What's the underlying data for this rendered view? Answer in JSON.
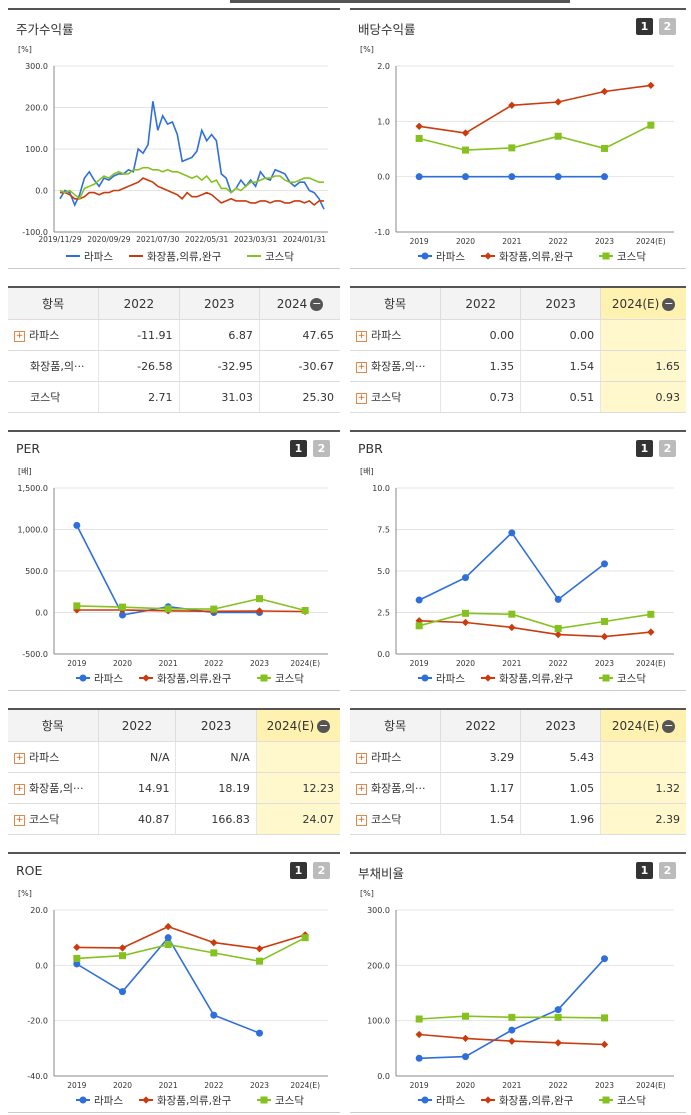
{
  "series_names": [
    "라파스",
    "화장품,의류,완구",
    "코스닥"
  ],
  "series_colors": [
    "#2e6fdc",
    "#cc3b0e",
    "#86c21f"
  ],
  "panels": [
    {
      "key": "stock",
      "title": "주가수익률",
      "buttons": []
    },
    {
      "key": "div",
      "title": "배당수익률",
      "buttons": [
        "1",
        "2"
      ]
    },
    {
      "key": "per",
      "title": "PER",
      "buttons": [
        "1",
        "2"
      ]
    },
    {
      "key": "pbr",
      "title": "PBR",
      "buttons": [
        "1",
        "2"
      ]
    },
    {
      "key": "roe",
      "title": "ROE",
      "buttons": [
        "1",
        "2"
      ]
    },
    {
      "key": "debt",
      "title": "부채비율",
      "buttons": [
        "1",
        "2"
      ]
    }
  ],
  "chart_data": [
    {
      "key": "stock",
      "type": "line",
      "title": "주가수익률",
      "unit": "[%]",
      "yticks": [
        "300.0",
        "200.0",
        "100.0",
        "0.0",
        "-100.0"
      ],
      "ylim": [
        -100,
        300
      ],
      "xticks": [
        "2019/11/29",
        "2020/09/29",
        "2021/07/30",
        "2022/05/31",
        "2023/03/31",
        "2024/01/31"
      ],
      "x": [
        "2019/11",
        "2019/12",
        "2020/01",
        "2020/02",
        "2020/03",
        "2020/04",
        "2020/05",
        "2020/06",
        "2020/07",
        "2020/08",
        "2020/09",
        "2020/10",
        "2020/11",
        "2020/12",
        "2021/01",
        "2021/02",
        "2021/03",
        "2021/04",
        "2021/05",
        "2021/06",
        "2021/07",
        "2021/08",
        "2021/09",
        "2021/10",
        "2021/11",
        "2021/12",
        "2022/01",
        "2022/02",
        "2022/03",
        "2022/04",
        "2022/05",
        "2022/06",
        "2022/07",
        "2022/08",
        "2022/09",
        "2022/10",
        "2022/11",
        "2022/12",
        "2023/01",
        "2023/02",
        "2023/03",
        "2023/04",
        "2023/05",
        "2023/06",
        "2023/07",
        "2023/08",
        "2023/09",
        "2023/10",
        "2023/11",
        "2023/12",
        "2024/01",
        "2024/02",
        "2024/03",
        "2024/04",
        "2024/05"
      ],
      "series": [
        {
          "name": "라파스",
          "values": [
            -20,
            0,
            -5,
            -35,
            -10,
            30,
            45,
            25,
            10,
            30,
            25,
            35,
            40,
            40,
            50,
            45,
            100,
            90,
            110,
            215,
            145,
            180,
            160,
            165,
            135,
            70,
            75,
            80,
            95,
            145,
            120,
            135,
            120,
            40,
            30,
            -5,
            5,
            25,
            10,
            25,
            10,
            45,
            30,
            25,
            50,
            45,
            40,
            20,
            10,
            20,
            20,
            0,
            -5,
            -20,
            -45
          ]
        },
        {
          "name": "화장품,의류,완구",
          "values": [
            -5,
            -5,
            -10,
            -20,
            -20,
            -15,
            -5,
            -5,
            -10,
            -5,
            -5,
            0,
            0,
            5,
            10,
            15,
            20,
            30,
            25,
            20,
            10,
            5,
            0,
            -5,
            -10,
            -20,
            -5,
            -15,
            -15,
            -10,
            -5,
            -10,
            -20,
            -30,
            -25,
            -20,
            -25,
            -25,
            -25,
            -30,
            -30,
            -25,
            -25,
            -30,
            -25,
            -25,
            -30,
            -30,
            -25,
            -25,
            -30,
            -25,
            -35,
            -25,
            -25
          ]
        },
        {
          "name": "코스닥",
          "values": [
            0,
            -5,
            0,
            -10,
            -20,
            5,
            10,
            15,
            25,
            35,
            30,
            40,
            45,
            40,
            40,
            50,
            50,
            55,
            55,
            50,
            50,
            45,
            50,
            45,
            45,
            40,
            35,
            30,
            35,
            25,
            35,
            20,
            25,
            5,
            5,
            -5,
            5,
            0,
            10,
            20,
            20,
            25,
            30,
            30,
            35,
            35,
            25,
            20,
            20,
            25,
            30,
            30,
            25,
            20,
            20
          ]
        }
      ]
    },
    {
      "key": "div",
      "type": "line",
      "title": "배당수익률",
      "unit": "[%]",
      "yticks": [
        "2.0",
        "1.0",
        "0.0",
        "-1.0"
      ],
      "ylim": [
        -1,
        2
      ],
      "x": [
        "2019",
        "2020",
        "2021",
        "2022",
        "2023",
        "2024(E)"
      ],
      "series": [
        {
          "name": "라파스",
          "values": [
            0.0,
            0.0,
            0.0,
            0.0,
            0.0,
            null
          ]
        },
        {
          "name": "화장품,의류,완구",
          "values": [
            0.91,
            0.79,
            1.29,
            1.35,
            1.54,
            1.65
          ]
        },
        {
          "name": "코스닥",
          "values": [
            0.69,
            0.48,
            0.52,
            0.73,
            0.51,
            0.93
          ]
        }
      ]
    },
    {
      "key": "per",
      "type": "line",
      "title": "PER",
      "unit": "[배]",
      "yticks": [
        "1,500.0",
        "1,000.0",
        "500.0",
        "0.0",
        "-500.0"
      ],
      "ylim": [
        -500,
        1500
      ],
      "x": [
        "2019",
        "2020",
        "2021",
        "2022",
        "2023",
        "2024(E)"
      ],
      "series": [
        {
          "name": "라파스",
          "values": [
            1050,
            -30,
            70,
            0,
            0,
            null
          ]
        },
        {
          "name": "화장품,의류,완구",
          "values": [
            30,
            30,
            20,
            14.91,
            18.19,
            12.23
          ]
        },
        {
          "name": "코스닥",
          "values": [
            80,
            65,
            45,
            40.87,
            166.83,
            24.07
          ]
        }
      ]
    },
    {
      "key": "pbr",
      "type": "line",
      "title": "PBR",
      "unit": "[배]",
      "yticks": [
        "10.0",
        "7.5",
        "5.0",
        "2.5",
        "0.0"
      ],
      "ylim": [
        0,
        10
      ],
      "x": [
        "2019",
        "2020",
        "2021",
        "2022",
        "2023",
        "2024(E)"
      ],
      "series": [
        {
          "name": "라파스",
          "values": [
            3.25,
            4.6,
            7.3,
            3.29,
            5.43,
            null
          ]
        },
        {
          "name": "화장품,의류,완구",
          "values": [
            2.0,
            1.9,
            1.6,
            1.17,
            1.05,
            1.32
          ]
        },
        {
          "name": "코스닥",
          "values": [
            1.7,
            2.45,
            2.4,
            1.54,
            1.96,
            2.39
          ]
        }
      ]
    },
    {
      "key": "roe",
      "type": "line",
      "title": "ROE",
      "unit": "[%]",
      "yticks": [
        "20.0",
        "0.0",
        "-20.0",
        "-40.0"
      ],
      "ylim": [
        -40,
        20
      ],
      "x": [
        "2019",
        "2020",
        "2021",
        "2022",
        "2023",
        "2024(E)"
      ],
      "series": [
        {
          "name": "라파스",
          "values": [
            0.5,
            -9.5,
            10.0,
            -18.0,
            -24.5,
            null
          ]
        },
        {
          "name": "화장품,의류,완구",
          "values": [
            6.5,
            6.3,
            14.0,
            8.2,
            6.0,
            11.0
          ]
        },
        {
          "name": "코스닥",
          "values": [
            2.5,
            3.5,
            7.5,
            4.5,
            1.5,
            10.0
          ]
        }
      ]
    },
    {
      "key": "debt",
      "type": "line",
      "title": "부채비율",
      "unit": "[%]",
      "yticks": [
        "300.0",
        "200.0",
        "100.0",
        "0.0"
      ],
      "ylim": [
        0,
        300
      ],
      "x": [
        "2019",
        "2020",
        "2021",
        "2022",
        "2023",
        "2024(E)"
      ],
      "series": [
        {
          "name": "라파스",
          "values": [
            32,
            35,
            83,
            120,
            212,
            null
          ]
        },
        {
          "name": "화장품,의류,완구",
          "values": [
            75,
            68,
            63,
            60,
            57,
            null
          ]
        },
        {
          "name": "코스닥",
          "values": [
            103,
            108,
            106,
            106,
            105,
            null
          ]
        }
      ]
    }
  ],
  "tables": [
    {
      "key": "t_stock",
      "header": [
        "항목",
        "2022",
        "2023",
        "2024"
      ],
      "estimate": false,
      "rows": [
        {
          "name": "라파스",
          "plus": true,
          "values": [
            "-11.91",
            "6.87",
            "47.65"
          ]
        },
        {
          "name": "화장품,의···",
          "plus": false,
          "values": [
            "-26.58",
            "-32.95",
            "-30.67"
          ]
        },
        {
          "name": "코스닥",
          "plus": false,
          "values": [
            "2.71",
            "31.03",
            "25.30"
          ]
        }
      ]
    },
    {
      "key": "t_div",
      "header": [
        "항목",
        "2022",
        "2023",
        "2024(E)"
      ],
      "estimate": true,
      "rows": [
        {
          "name": "라파스",
          "plus": true,
          "values": [
            "0.00",
            "0.00",
            ""
          ]
        },
        {
          "name": "화장품,의···",
          "plus": true,
          "values": [
            "1.35",
            "1.54",
            "1.65"
          ]
        },
        {
          "name": "코스닥",
          "plus": true,
          "values": [
            "0.73",
            "0.51",
            "0.93"
          ]
        }
      ]
    },
    {
      "key": "t_per",
      "header": [
        "항목",
        "2022",
        "2023",
        "2024(E)"
      ],
      "estimate": true,
      "rows": [
        {
          "name": "라파스",
          "plus": true,
          "values": [
            "N/A",
            "N/A",
            ""
          ]
        },
        {
          "name": "화장품,의···",
          "plus": true,
          "values": [
            "14.91",
            "18.19",
            "12.23"
          ]
        },
        {
          "name": "코스닥",
          "plus": true,
          "values": [
            "40.87",
            "166.83",
            "24.07"
          ]
        }
      ]
    },
    {
      "key": "t_pbr",
      "header": [
        "항목",
        "2022",
        "2023",
        "2024(E)"
      ],
      "estimate": true,
      "rows": [
        {
          "name": "라파스",
          "plus": true,
          "values": [
            "3.29",
            "5.43",
            ""
          ]
        },
        {
          "name": "화장품,의···",
          "plus": true,
          "values": [
            "1.17",
            "1.05",
            "1.32"
          ]
        },
        {
          "name": "코스닥",
          "plus": true,
          "values": [
            "1.54",
            "1.96",
            "2.39"
          ]
        }
      ]
    }
  ]
}
